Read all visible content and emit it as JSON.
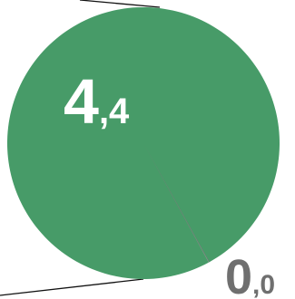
{
  "chart_data": {
    "type": "pie",
    "categories": [
      "4,4",
      "0,0"
    ],
    "values": [
      4.4,
      0.004
    ],
    "data_labels": [
      {
        "integer": "4",
        "decimal": ",4"
      },
      {
        "integer": "0",
        "decimal": ",0"
      }
    ],
    "colors": [
      "#479b68",
      "#7a7a7a"
    ],
    "label_colors": [
      "#ffffff",
      "#6f6f6f"
    ],
    "legend": "none",
    "grid": false
  }
}
